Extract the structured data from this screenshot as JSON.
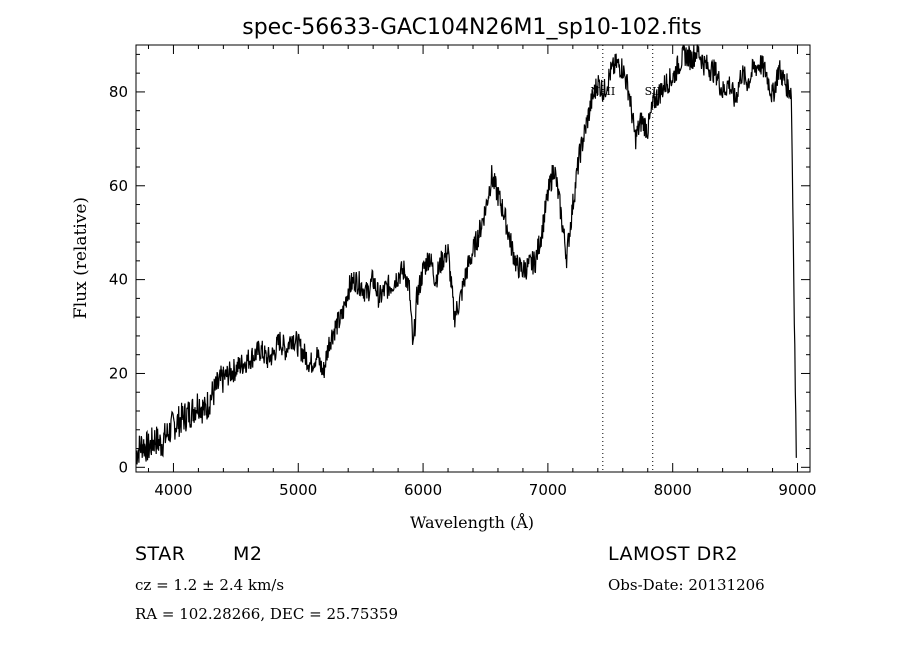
{
  "chart_data": {
    "type": "line",
    "title": "spec-56633-GAC104N26M1_sp10-102.fits",
    "xlabel": "Wavelength (Å)",
    "ylabel": "Flux (relative)",
    "xlim": [
      3700,
      9100
    ],
    "ylim": [
      -1,
      90
    ],
    "x_ticks": [
      4000,
      5000,
      6000,
      7000,
      8000,
      9000
    ],
    "y_ticks": [
      0,
      20,
      40,
      60,
      80
    ],
    "grid": false,
    "line_color": "#000000",
    "series": [
      {
        "x": [
          3700,
          3750,
          3800,
          3850,
          3900,
          3950,
          4000,
          4050,
          4100,
          4150,
          4200,
          4250,
          4300,
          4350,
          4400,
          4450,
          4500,
          4550,
          4600,
          4650,
          4700,
          4750,
          4800,
          4850,
          4900,
          4950,
          5000,
          5050,
          5100,
          5150,
          5200,
          5250,
          5300,
          5350,
          5400,
          5450,
          5500,
          5550,
          5600,
          5650,
          5700,
          5750,
          5800,
          5850,
          5890,
          5920,
          5950,
          6000,
          6050,
          6100,
          6150,
          6200,
          6250,
          6300,
          6350,
          6400,
          6450,
          6500,
          6550,
          6600,
          6650,
          6700,
          6750,
          6800,
          6850,
          6900,
          6950,
          7000,
          7050,
          7100,
          7150,
          7200,
          7250,
          7300,
          7350,
          7400,
          7450,
          7500,
          7550,
          7600,
          7650,
          7700,
          7750,
          7800,
          7850,
          7900,
          7950,
          8000,
          8050,
          8100,
          8150,
          8200,
          8250,
          8300,
          8350,
          8400,
          8450,
          8500,
          8550,
          8600,
          8650,
          8700,
          8750,
          8800,
          8850,
          8900,
          8950,
          8990
        ],
        "y": [
          3,
          5,
          4,
          6,
          5,
          7,
          9,
          10,
          11,
          12,
          14,
          12,
          15,
          17,
          19,
          20,
          21,
          22,
          23,
          24,
          25,
          23,
          24,
          27,
          25,
          28,
          26,
          24,
          22,
          24,
          20,
          27,
          30,
          32,
          38,
          40,
          39,
          37,
          40,
          36,
          38,
          39,
          41,
          42,
          38,
          25,
          36,
          42,
          45,
          40,
          44,
          46,
          32,
          36,
          42,
          46,
          50,
          55,
          62,
          58,
          54,
          48,
          43,
          42,
          43,
          44,
          50,
          58,
          64,
          55,
          45,
          56,
          66,
          72,
          78,
          82,
          80,
          84,
          86,
          85,
          80,
          70,
          74,
          72,
          78,
          80,
          82,
          83,
          86,
          88,
          87,
          89,
          86,
          85,
          84,
          80,
          82,
          78,
          84,
          82,
          85,
          86,
          84,
          79,
          85,
          82,
          80,
          2
        ]
      }
    ],
    "annotations": [
      {
        "label": "NaII",
        "x": 7440
      },
      {
        "label": "SII",
        "x": 7840
      }
    ]
  },
  "info": {
    "object": "STAR",
    "subclass": "M2",
    "survey": "LAMOST DR2",
    "cz": "cz = 1.2 ± 2.4 km/s",
    "obs_date": "Obs-Date: 20131206",
    "coords": "RA = 102.28266, DEC =  25.75359"
  }
}
